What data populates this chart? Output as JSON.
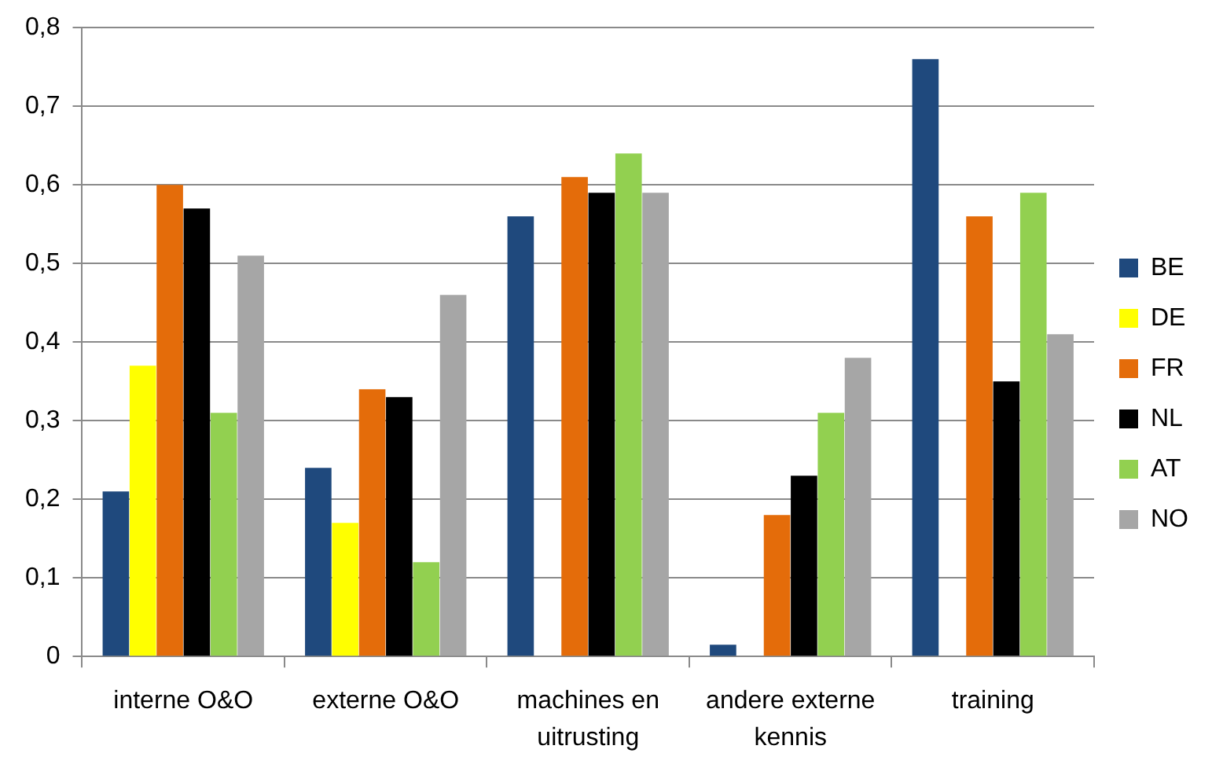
{
  "chart_data": {
    "type": "bar",
    "categories": [
      "interne O&O",
      "externe O&O",
      "machines en uitrusting",
      "andere externe kennis",
      "training"
    ],
    "series": [
      {
        "name": "BE",
        "color": "#1f497d",
        "values": [
          0.21,
          0.24,
          0.56,
          0.015,
          0.76
        ]
      },
      {
        "name": "DE",
        "color": "#ffff00",
        "values": [
          0.37,
          0.17,
          null,
          null,
          null
        ]
      },
      {
        "name": "FR",
        "color": "#e46c0a",
        "values": [
          0.6,
          0.34,
          0.61,
          0.18,
          0.56
        ]
      },
      {
        "name": "NL",
        "color": "#000000",
        "values": [
          0.57,
          0.33,
          0.59,
          0.23,
          0.35
        ]
      },
      {
        "name": "AT",
        "color": "#92d050",
        "values": [
          0.31,
          0.12,
          0.64,
          0.31,
          0.59
        ]
      },
      {
        "name": "NO",
        "color": "#a6a6a6",
        "values": [
          0.51,
          0.46,
          0.59,
          0.38,
          0.41
        ]
      }
    ],
    "ylim": [
      0,
      0.8
    ],
    "yticks": [
      0,
      {
        "value": 0.1,
        "label": "0,1"
      },
      {
        "value": 0.2,
        "label": "0,2"
      },
      {
        "value": 0.3,
        "label": "0,3"
      },
      {
        "value": 0.4,
        "label": "0,4"
      },
      {
        "value": 0.5,
        "label": "0,5"
      },
      {
        "value": 0.6,
        "label": "0,6"
      },
      {
        "value": 0.7,
        "label": "0,7"
      },
      {
        "value": 0.8,
        "label": "0,8"
      }
    ],
    "grid": "y",
    "legend": "right"
  }
}
